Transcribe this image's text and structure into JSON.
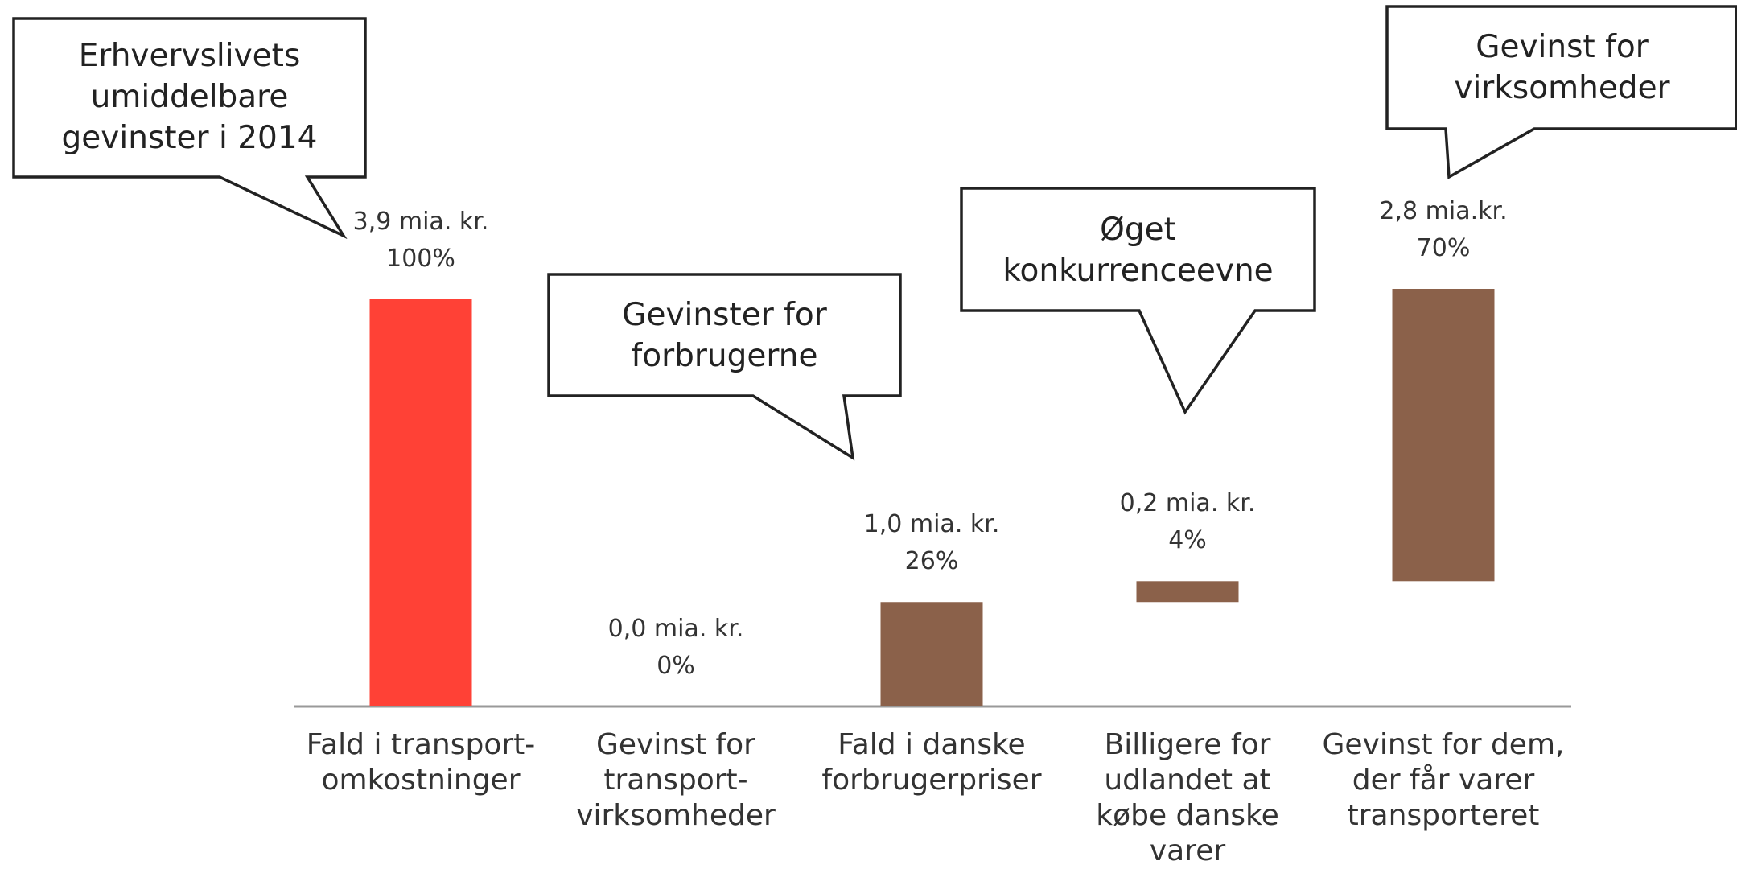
{
  "chart_data": {
    "type": "waterfall",
    "categories": [
      "Fald i  transport-\nomkostninger",
      "Gevinst for\ntransport-\nvirksomheder",
      "Fald i danske\nforbrugerpriser",
      "Billigere for\nudlandet at\nkøbe danske varer",
      "Gevinst for dem,\nder får varer\ntransporteret"
    ],
    "values": [
      3.9,
      0.0,
      1.0,
      0.2,
      2.8
    ],
    "value_labels": [
      "3,9 mia. kr.",
      "0,0 mia. kr.",
      "1,0 mia. kr.",
      "0,2 mia. kr.",
      "2,8 mia.kr."
    ],
    "share_labels": [
      "100%",
      "0%",
      "26%",
      "4%",
      "70%"
    ],
    "colors": [
      "#ff4136",
      "#8b614a",
      "#8b614a",
      "#8b614a",
      "#8b614a"
    ],
    "ylim": [
      0,
      4
    ],
    "annotations": [
      "Erhvervslivets\numiddelbare\ngevinster i 2014",
      "Gevinster for\nforbrugerne",
      "Øget\nkonkurrenceevne",
      "Gevinst for\nvirksomheder"
    ]
  }
}
